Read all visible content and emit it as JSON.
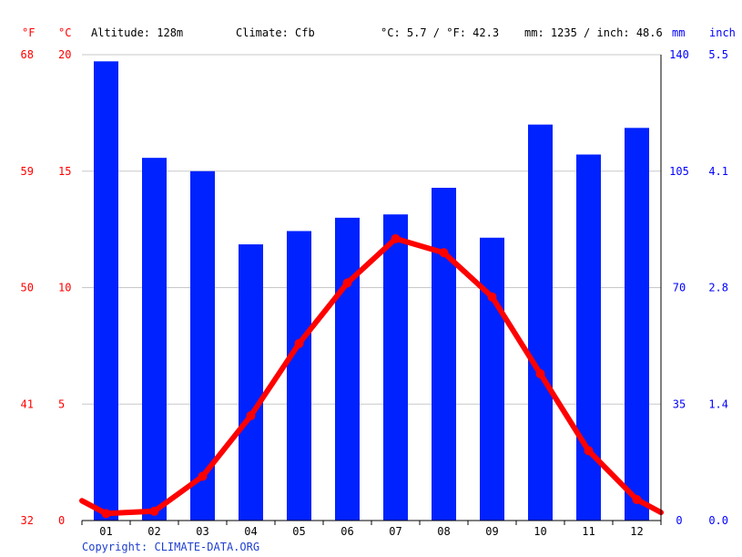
{
  "header": {
    "unit_f": "°F",
    "unit_c": "°C",
    "altitude": "Altitude: 128m",
    "climate": "Climate: Cfb",
    "temp_avg": "°C: 5.7 / °F: 42.3",
    "precip_avg": "mm: 1235 / inch: 48.6",
    "unit_mm": "mm",
    "unit_inch": "inch"
  },
  "copyright": "Copyright: CLIMATE-DATA.ORG",
  "colors": {
    "bars": "#0022ff",
    "line": "#ff0000",
    "left_axis": "#ff0000",
    "right_axis": "#0000ff"
  },
  "chart_data": {
    "type": "bar",
    "categories": [
      "01",
      "02",
      "03",
      "04",
      "05",
      "06",
      "07",
      "08",
      "09",
      "10",
      "11",
      "12"
    ],
    "precip_mm": [
      138,
      109,
      105,
      83,
      87,
      91,
      92,
      100,
      85,
      119,
      110,
      118
    ],
    "temp_c": [
      0.3,
      0.4,
      1.9,
      4.5,
      7.6,
      10.2,
      12.1,
      11.5,
      9.6,
      6.3,
      3.0,
      0.9
    ],
    "left_axis_c": {
      "ticks": [
        "0",
        "5",
        "10",
        "15",
        "20"
      ],
      "values": [
        0,
        5,
        10,
        15,
        20
      ],
      "ylim": [
        0,
        20
      ]
    },
    "left_axis_f": {
      "ticks": [
        "32",
        "41",
        "50",
        "59",
        "68"
      ]
    },
    "right_axis_mm": {
      "ticks": [
        "0",
        "35",
        "70",
        "105",
        "140"
      ],
      "values": [
        0,
        35,
        70,
        105,
        140
      ],
      "ylim": [
        0,
        140
      ]
    },
    "right_axis_inch": {
      "ticks": [
        "0.0",
        "1.4",
        "2.8",
        "4.1",
        "5.5"
      ]
    },
    "grid": true
  }
}
